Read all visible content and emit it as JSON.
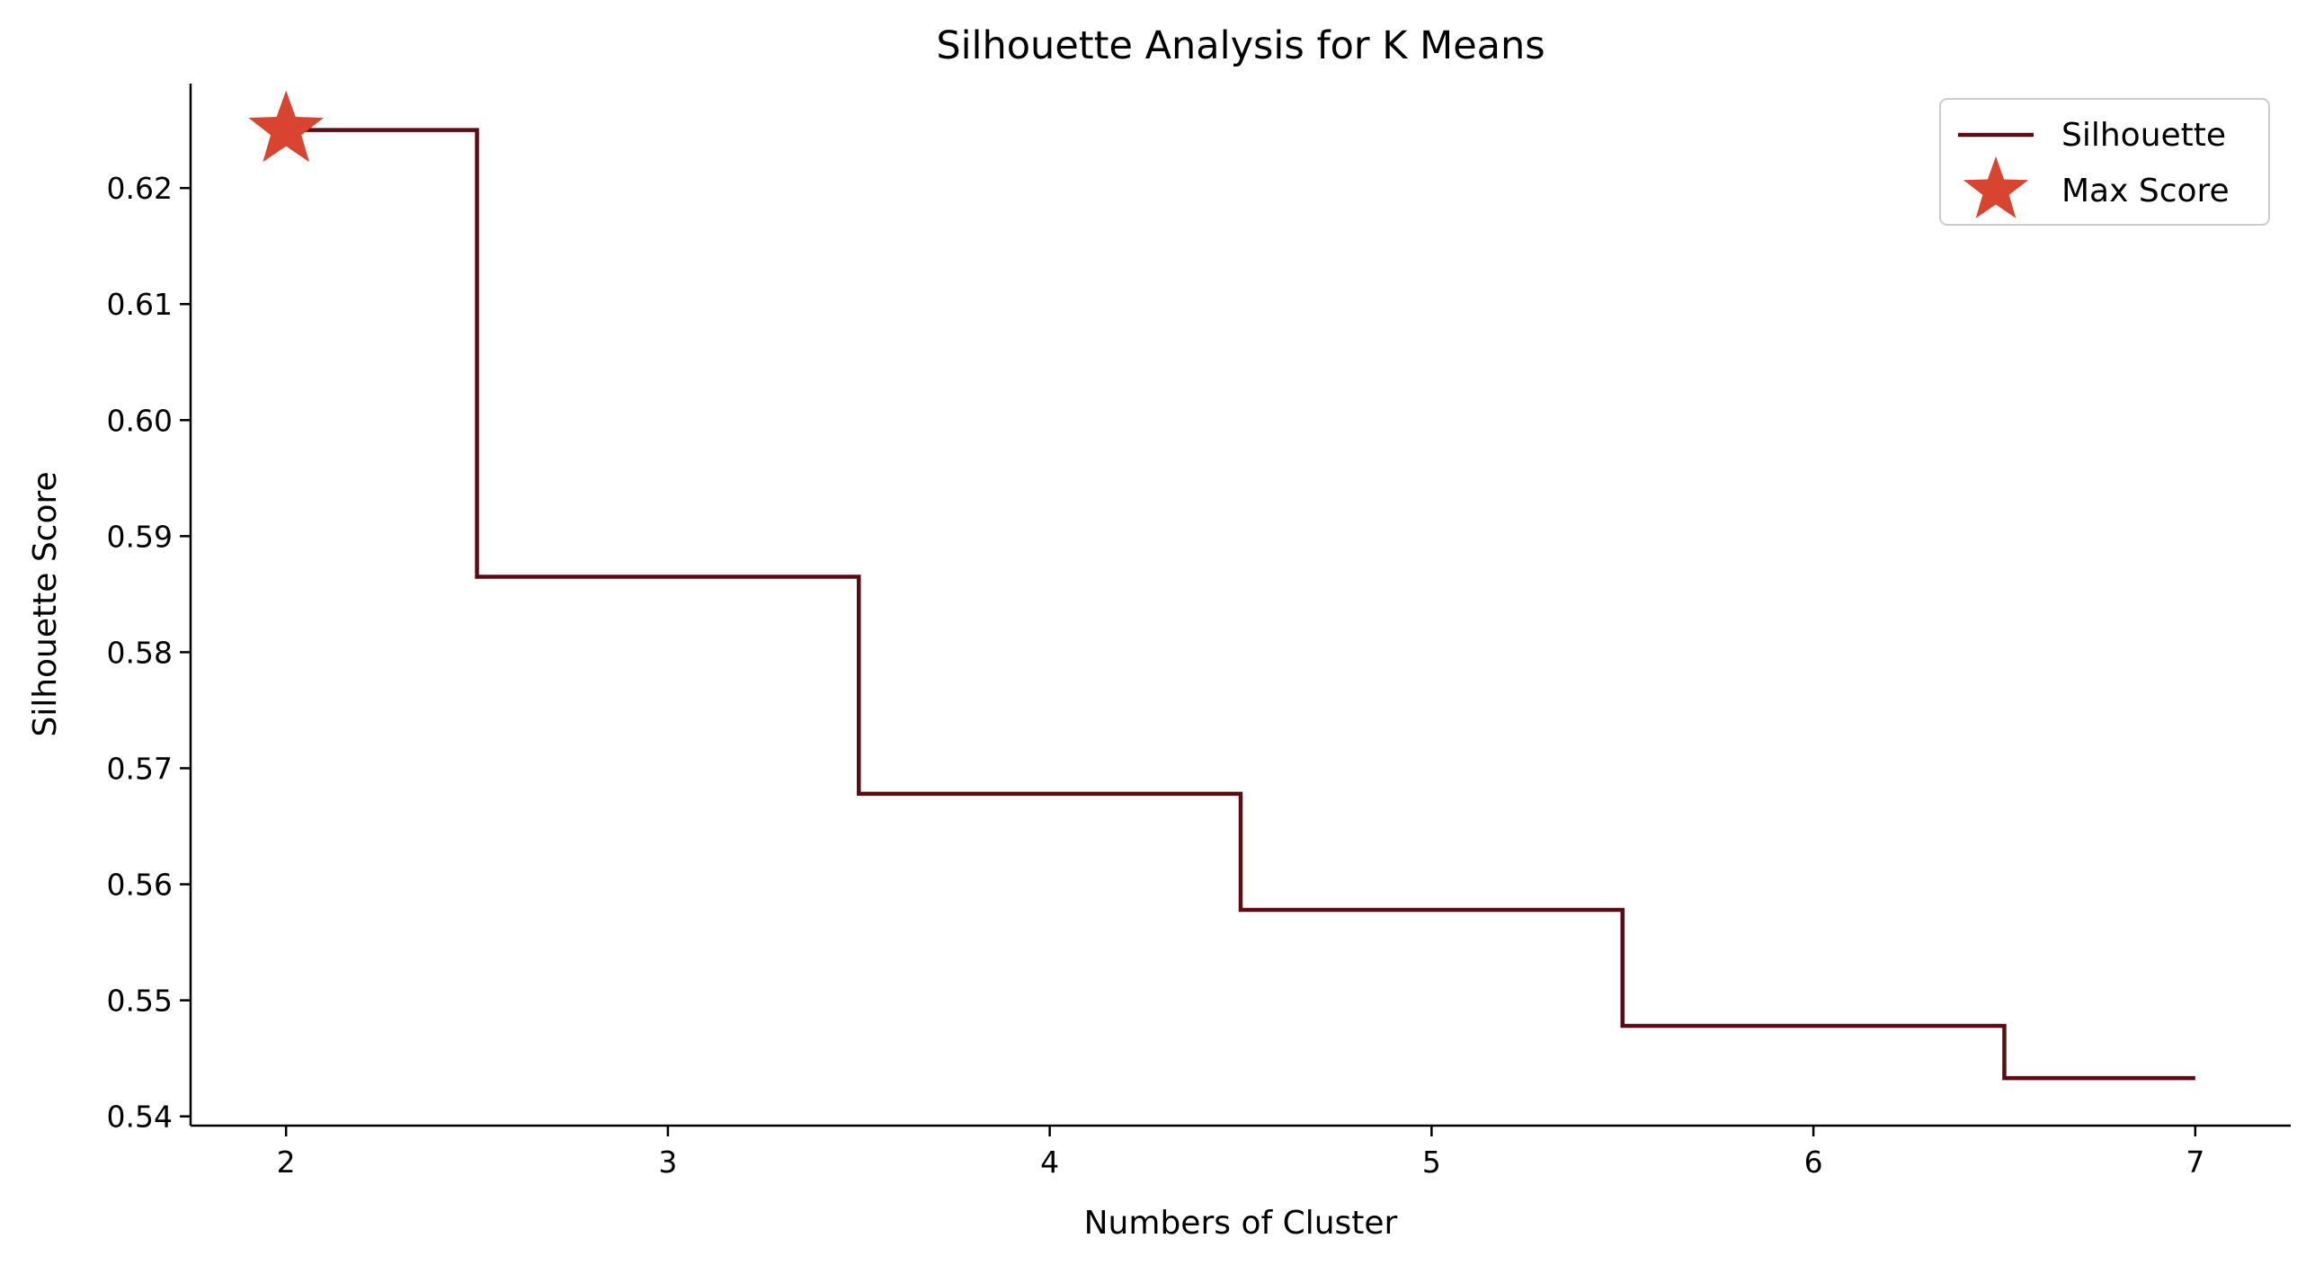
{
  "chart_data": {
    "type": "line",
    "step": "mid",
    "title": "Silhouette Analysis for K Means",
    "xlabel": "Numbers of Cluster",
    "ylabel": "Silhouette Score",
    "x": [
      2,
      3,
      4,
      5,
      6,
      7
    ],
    "xticks": [
      "2",
      "3",
      "4",
      "5",
      "6",
      "7"
    ],
    "xlim": [
      1.75,
      7.25
    ],
    "ylim": [
      0.5392,
      0.629
    ],
    "yticks": [
      "0.54",
      "0.55",
      "0.56",
      "0.57",
      "0.58",
      "0.59",
      "0.60",
      "0.61",
      "0.62"
    ],
    "ytick_values": [
      0.54,
      0.55,
      0.56,
      0.57,
      0.58,
      0.59,
      0.6,
      0.61,
      0.62
    ],
    "series": [
      {
        "name": "Silhouette",
        "values": [
          0.625,
          0.5865,
          0.5678,
          0.5578,
          0.5478,
          0.5433
        ],
        "color": "#5c0a14"
      }
    ],
    "max_marker": {
      "name": "Max Score",
      "x": 2,
      "y": 0.625,
      "color": "#d94430",
      "shape": "star"
    },
    "legend": {
      "position": "top-right",
      "entries": [
        "Silhouette",
        "Max Score"
      ]
    },
    "grid": false
  }
}
